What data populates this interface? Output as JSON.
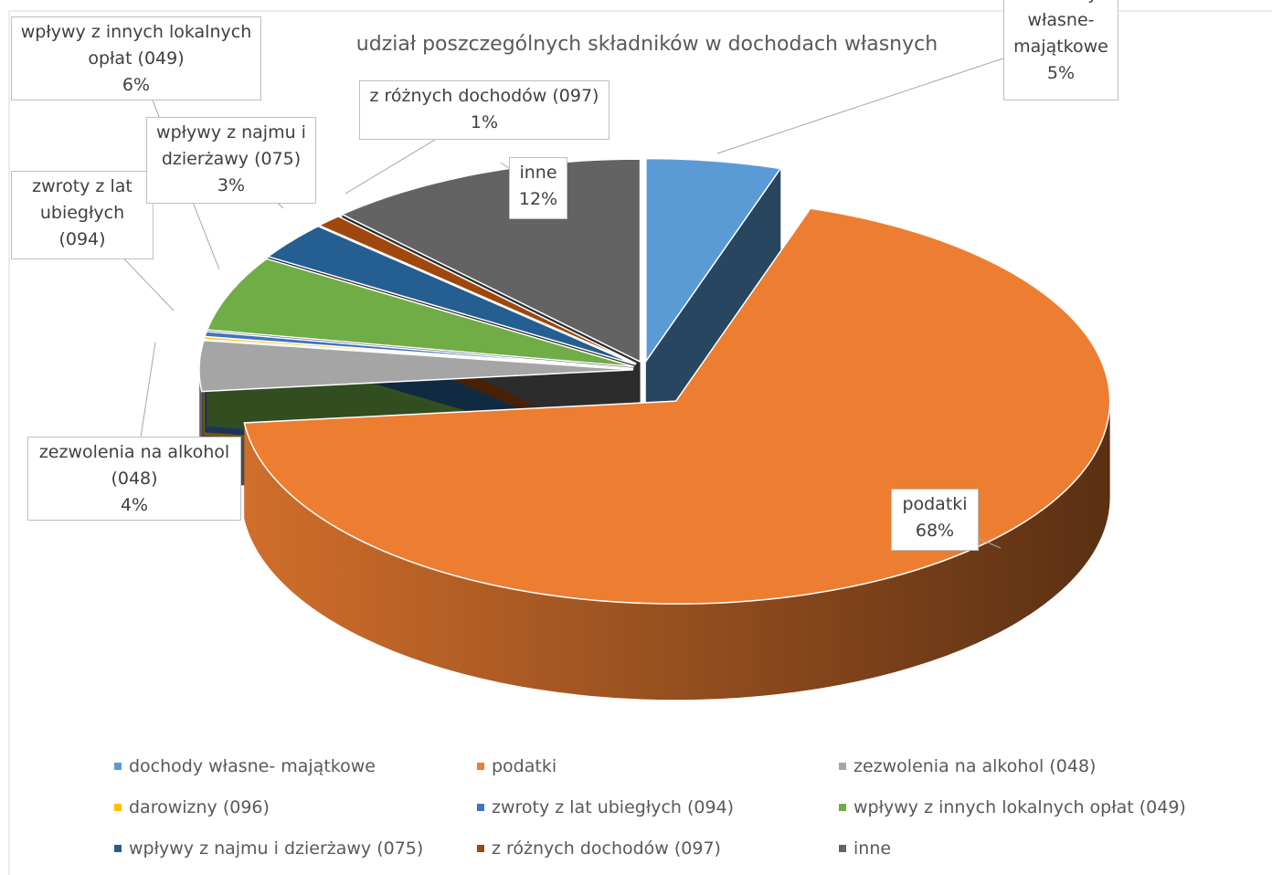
{
  "chart_data": {
    "type": "pie",
    "title": "udział poszczególnych składników w dochodach własnych",
    "categories": [
      "dochody własne- majątkowe",
      "podatki",
      "zezwolenia na alkohol (048)",
      "darowizny (096)",
      "zwroty z lat ubiegłych (094)",
      "wpływy z innych lokalnych opłat (049)",
      "wpływy z najmu i dzierżawy (075)",
      "z różnych dochodów (097)",
      "inne"
    ],
    "values": [
      5,
      68,
      4,
      0.2,
      0.4,
      6,
      3,
      1,
      12
    ],
    "colors": [
      "#5b9bd5",
      "#ed7d31",
      "#a5a5a5",
      "#ffc000",
      "#4472c4",
      "#70ad47",
      "#255e91",
      "#9e480e",
      "#636363"
    ],
    "value_labels": [
      "5%",
      "68%",
      "4%",
      null,
      null,
      "6%",
      "3%",
      "1%",
      "12%"
    ],
    "legend": "bottom"
  }
}
